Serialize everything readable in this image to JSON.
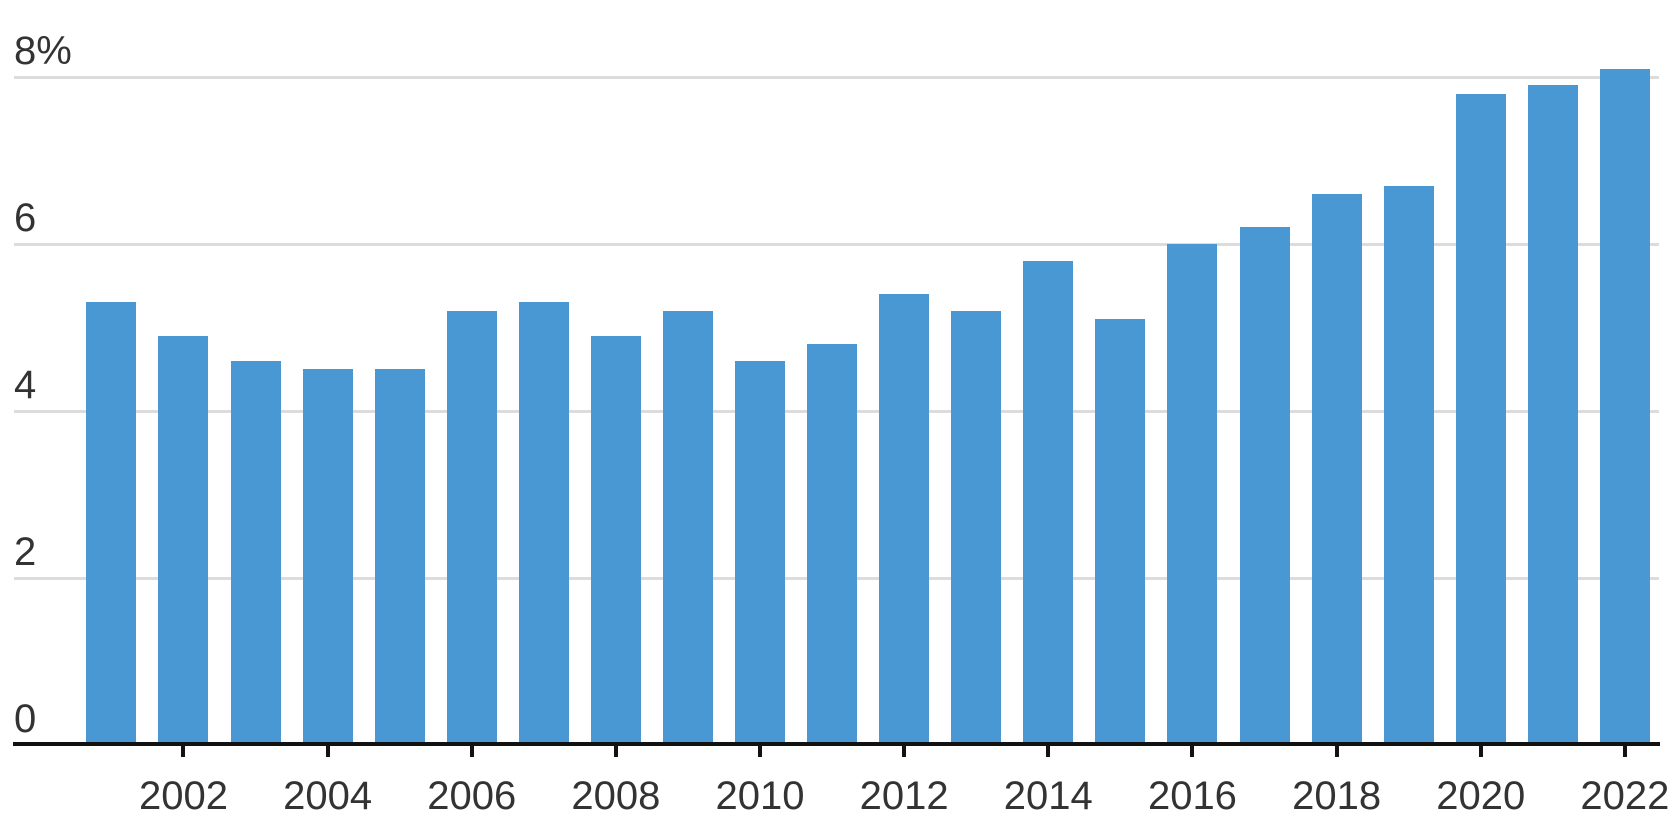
{
  "chart_data": {
    "type": "bar",
    "title": "",
    "x": [
      2001,
      2002,
      2003,
      2004,
      2005,
      2006,
      2007,
      2008,
      2009,
      2010,
      2011,
      2012,
      2013,
      2014,
      2015,
      2016,
      2017,
      2018,
      2019,
      2020,
      2021,
      2022
    ],
    "values": [
      5.3,
      4.9,
      4.6,
      4.5,
      4.5,
      5.2,
      5.3,
      4.9,
      5.2,
      4.6,
      4.8,
      5.4,
      5.2,
      5.8,
      5.1,
      6.0,
      6.2,
      6.6,
      6.7,
      7.8,
      7.9,
      8.1
    ],
    "unit": "%",
    "y_ticks": [
      {
        "value": 8,
        "label": "8%"
      },
      {
        "value": 6,
        "label": "6"
      },
      {
        "value": 4,
        "label": "4"
      },
      {
        "value": 2,
        "label": "2"
      },
      {
        "value": 0,
        "label": "0"
      }
    ],
    "x_tick_years": [
      "2002",
      "2004",
      "2006",
      "2008",
      "2010",
      "2012",
      "2014",
      "2016",
      "2018",
      "2020",
      "2022"
    ],
    "ylim": [
      0,
      8.2
    ],
    "grid": true,
    "legend_position": "none",
    "colors": {
      "bar": "#4997d3",
      "gridline": "#dcdcdc",
      "axis": "#121212",
      "tick_label": "#333333"
    }
  }
}
